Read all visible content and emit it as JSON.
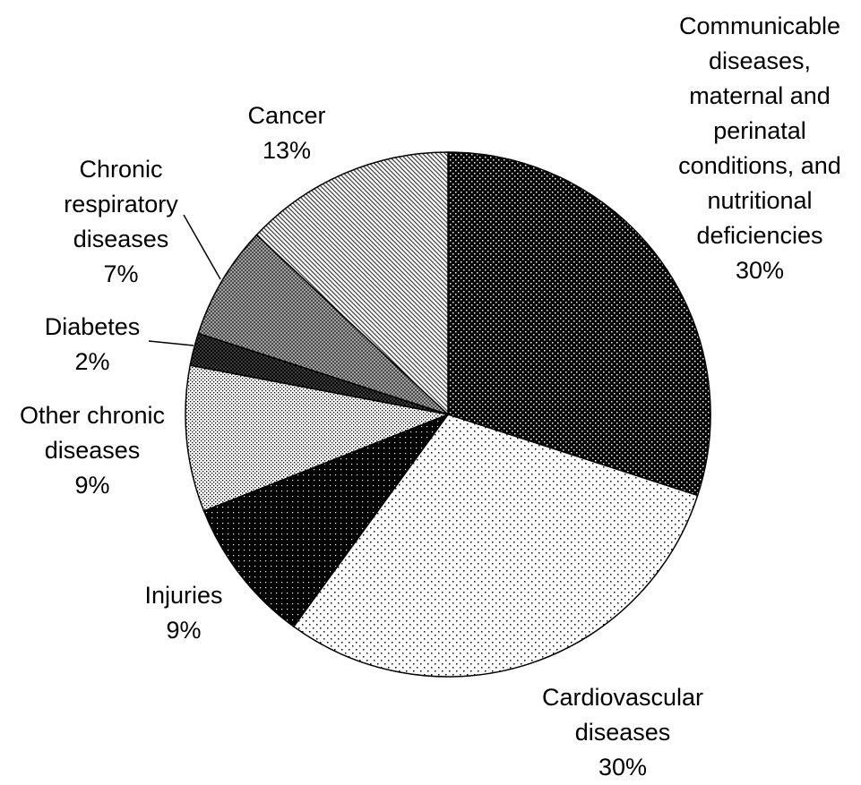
{
  "chart_data": {
    "type": "pie",
    "categories": [
      "Communicable diseases, maternal and perinatal conditions, and nutritional deficiencies",
      "Cardiovascular diseases",
      "Injuries",
      "Other chronic diseases",
      "Diabetes",
      "Chronic respiratory diseases",
      "Cancer"
    ],
    "values": [
      30,
      30,
      9,
      9,
      2,
      7,
      13
    ],
    "value_labels": [
      "30%",
      "30%",
      "9%",
      "9%",
      "2%",
      "7%",
      "13%"
    ]
  }
}
